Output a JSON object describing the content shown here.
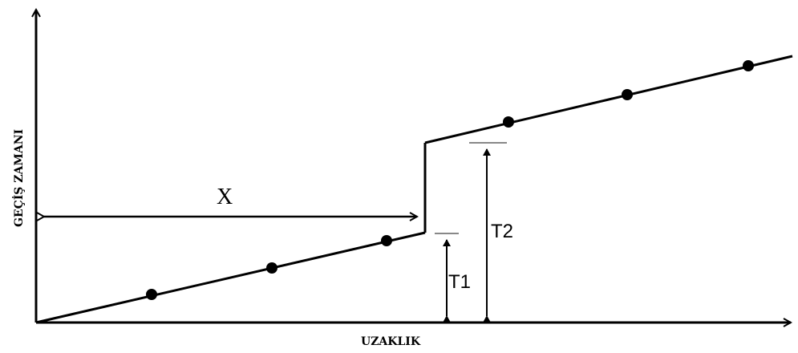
{
  "axes": {
    "x_label": "UZAKLIK",
    "y_label": "GEÇİŞ ZAMANI"
  },
  "annotations": {
    "x_distance": "X",
    "t1": "T1",
    "t2": "T2"
  },
  "colors": {
    "ink": "#000000",
    "guide": "#888888"
  }
}
